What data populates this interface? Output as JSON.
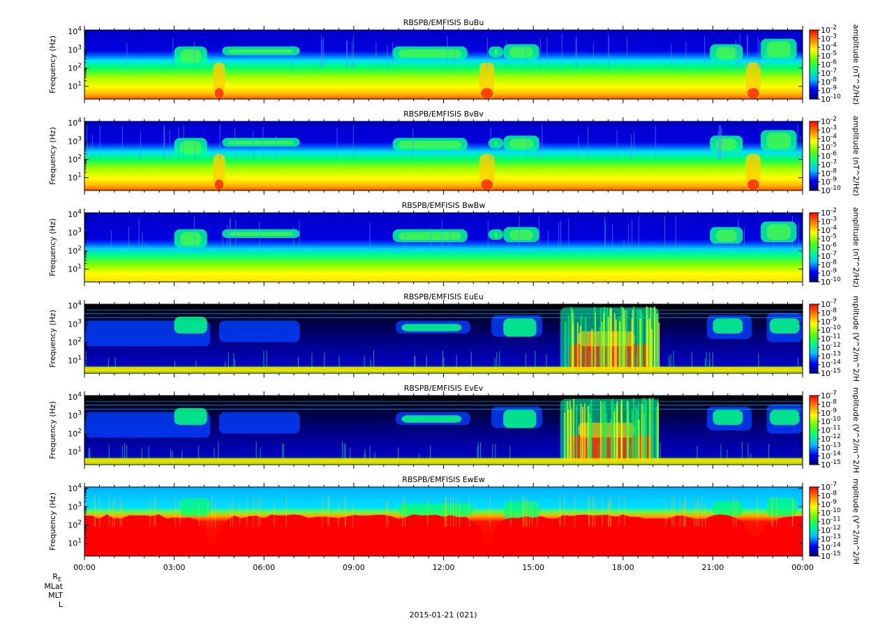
{
  "chart_data": {
    "type": "heatmap",
    "date_label": "2015-01-21 (021)",
    "x_ticks": [
      "00:00",
      "03:00",
      "06:00",
      "09:00",
      "12:00",
      "15:00",
      "18:00",
      "21:00",
      "00:00"
    ],
    "x_range_hours": [
      0,
      24
    ],
    "ylabel": "Frequency (Hz)",
    "y_scale": "log",
    "y_range_hz": [
      2,
      12000
    ],
    "y_ticks": [
      {
        "base": "10",
        "exp": "1"
      },
      {
        "base": "10",
        "exp": "2"
      },
      {
        "base": "10",
        "exp": "3"
      },
      {
        "base": "10",
        "exp": "4"
      }
    ],
    "orbit_labels": [
      "R",
      "MLat",
      "MLT",
      "L"
    ],
    "orbit_label_sub": "E",
    "colormap": [
      "#000080",
      "#0000ff",
      "#00c0ff",
      "#00ff80",
      "#60ff00",
      "#ffff00",
      "#ff8000",
      "#ff0000"
    ],
    "panels": [
      {
        "title": "RBSPB/EMFISIS  BuBu",
        "kind": "B",
        "cb_label": "amplitude (nT^2/Hz)",
        "cb_exps": [
          "-2",
          "-3",
          "-4",
          "-5",
          "-6",
          "-7",
          "-8",
          "-9",
          "-10"
        ]
      },
      {
        "title": "RBSPB/EMFISIS  BvBv",
        "kind": "B",
        "cb_label": "amplitude (nT^2/Hz)",
        "cb_exps": [
          "-2",
          "-3",
          "-4",
          "-5",
          "-6",
          "-7",
          "-8",
          "-9",
          "-10"
        ]
      },
      {
        "title": "RBSPB/EMFISIS  BwBw",
        "kind": "Bw",
        "cb_label": "amplitude (nT^2/Hz)",
        "cb_exps": [
          "-2",
          "-3",
          "-4",
          "-5",
          "-6",
          "-7",
          "-8",
          "-9",
          "-10"
        ]
      },
      {
        "title": "RBSPB/EMFISIS  EuEu",
        "kind": "E",
        "cb_label": "mplitude (V^2/m^2/H",
        "cb_exps": [
          "-7",
          "-8",
          "-9",
          "-10",
          "-11",
          "-12",
          "-13",
          "-14",
          "-15"
        ]
      },
      {
        "title": "RBSPB/EMFISIS  EvEv",
        "kind": "E",
        "cb_label": "mplitude (V^2/m^2/H",
        "cb_exps": [
          "-7",
          "-8",
          "-9",
          "-10",
          "-11",
          "-12",
          "-13",
          "-14",
          "-15"
        ]
      },
      {
        "title": "RBSPB/EMFISIS  EwEw",
        "kind": "Ew",
        "cb_label": "mplitude (V^2/m^2/H",
        "cb_exps": [
          "-7",
          "-8",
          "-9",
          "-10",
          "-11",
          "-12",
          "-13",
          "-14",
          "-15"
        ]
      }
    ]
  }
}
